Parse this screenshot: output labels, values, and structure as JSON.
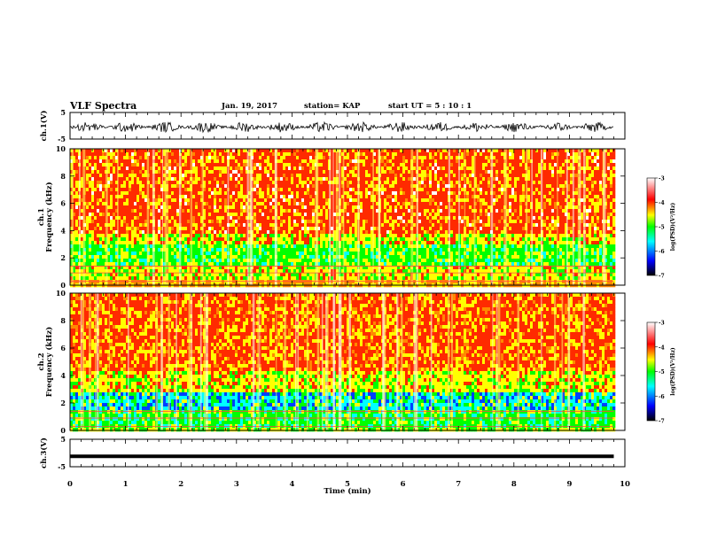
{
  "header": {
    "title": "VLF Spectra",
    "date": "Jan. 19, 2017",
    "station": "station= KAP",
    "start": "start UT =  5 : 10 : 1"
  },
  "chart_data": [
    {
      "type": "line",
      "panel": "ch1-waveform",
      "ylabel": "ch.1(V)",
      "ylim": [
        -5,
        5
      ],
      "y_ticks": [
        "5",
        "-5"
      ],
      "xlim": [
        0,
        10
      ],
      "description_values": {
        "mean": -0.5,
        "amplitude": 2.0
      }
    },
    {
      "type": "heatmap",
      "panel": "ch1-spectrogram",
      "ylabel": "ch.1 Frequency (kHz)",
      "ylim": [
        0,
        10
      ],
      "y_ticks": [
        "0",
        "2",
        "4",
        "6",
        "8",
        "10"
      ],
      "xlim": [
        0,
        9.8
      ],
      "colorbar": {
        "label": "log(PSD)(V²/Hz)",
        "range": [
          -7,
          -3
        ],
        "ticks": [
          "-3",
          "-4",
          "-5",
          "-6",
          "-7"
        ]
      },
      "bands_kHz": {
        "red_dominant_above": 4.0,
        "green_band": [
          1.5,
          3.2
        ],
        "yellow_band": [
          0.5,
          1.5
        ]
      }
    },
    {
      "type": "heatmap",
      "panel": "ch2-spectrogram",
      "ylabel": "ch.2 Frequency (kHz)",
      "ylim": [
        0,
        10
      ],
      "y_ticks": [
        "0",
        "2",
        "4",
        "6",
        "8",
        "10"
      ],
      "xlim": [
        0,
        9.8
      ],
      "colorbar": {
        "label": "log(PSD)(V²/Hz)",
        "range": [
          -7,
          -3
        ],
        "ticks": [
          "-3",
          "-4",
          "-5",
          "-6",
          "-7"
        ]
      },
      "bands_kHz": {
        "red_dominant_above": 4.5,
        "blue_band": [
          1.5,
          3.0
        ],
        "green_band": [
          0.3,
          1.5
        ]
      }
    },
    {
      "type": "line",
      "panel": "ch3-waveform",
      "ylabel": "ch.3(V)",
      "ylim": [
        -5,
        5
      ],
      "y_ticks": [
        "5",
        "-5"
      ],
      "xlim": [
        0,
        10
      ],
      "series": [
        {
          "values": [
            -1.2,
            -1.2
          ]
        }
      ]
    }
  ],
  "x_axis": {
    "label": "Time (min)",
    "range": [
      0,
      10
    ],
    "ticks": [
      "0",
      "1",
      "2",
      "3",
      "4",
      "5",
      "6",
      "7",
      "8",
      "9",
      "10"
    ]
  },
  "colors": {
    "cmap": [
      "#000000",
      "#0000ff",
      "#00ffff",
      "#00ff00",
      "#ffff00",
      "#ff0000",
      "#ffffff"
    ]
  }
}
